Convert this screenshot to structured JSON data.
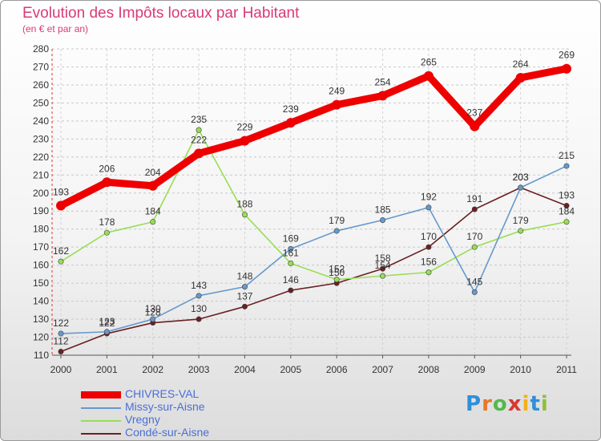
{
  "chart_data": {
    "type": "line",
    "title": "Evolution des Impôts locaux par Habitant",
    "subtitle": "(en € et par an)",
    "xlabel": "",
    "ylabel": "",
    "categories": [
      "2000",
      "2001",
      "2002",
      "2003",
      "2004",
      "2005",
      "2006",
      "2007",
      "2008",
      "2009",
      "2010",
      "2011"
    ],
    "ylim": [
      110,
      280
    ],
    "yticks": [
      110,
      120,
      130,
      140,
      150,
      160,
      170,
      180,
      190,
      200,
      210,
      220,
      230,
      240,
      250,
      260,
      270,
      280
    ],
    "grid": true,
    "legend_position": "bottom-left",
    "series": [
      {
        "name": "CHIVRES-VAL",
        "color": "#ee0000",
        "values": [
          193,
          206,
          204,
          222,
          229,
          239,
          249,
          254,
          265,
          237,
          264,
          269
        ]
      },
      {
        "name": "Missy-sur-Aisne",
        "color": "#6699cc",
        "values": [
          122,
          123,
          130,
          143,
          148,
          169,
          179,
          185,
          192,
          145,
          203,
          215
        ]
      },
      {
        "name": "Vregny",
        "color": "#99dd55",
        "values": [
          162,
          178,
          184,
          235,
          188,
          161,
          152,
          154,
          156,
          170,
          179,
          184
        ]
      },
      {
        "name": "Condé-sur-Aisne",
        "color": "#6b1f22",
        "values": [
          112,
          122,
          128,
          130,
          137,
          146,
          150,
          158,
          170,
          191,
          203,
          193
        ]
      }
    ]
  },
  "brand": {
    "letters": [
      "P",
      "r",
      "o",
      "x",
      "i",
      "t",
      "i"
    ],
    "colors": [
      "#2f8fd8",
      "#e8762a",
      "#55b84a",
      "#d8392f",
      "#f0b21a",
      "#2f8fd8",
      "#8fc03a"
    ]
  }
}
